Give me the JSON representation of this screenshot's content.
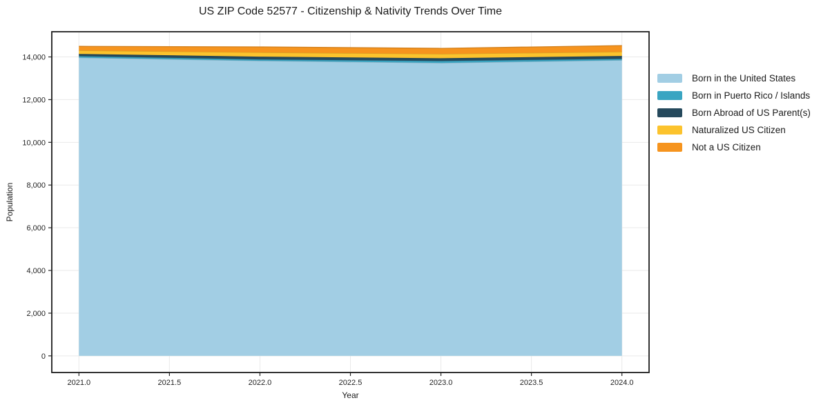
{
  "chart_data": {
    "type": "area",
    "stacked": true,
    "title": "US ZIP Code 52577 - Citizenship & Nativity Trends Over Time",
    "xlabel": "Year",
    "ylabel": "Population",
    "x": [
      2021,
      2022,
      2023,
      2024
    ],
    "series": [
      {
        "name": "Born in the United States",
        "color": "#a2cee4",
        "values": [
          13970,
          13820,
          13720,
          13850
        ]
      },
      {
        "name": "Born in Puerto Rico / Islands",
        "color": "#3aa5c2",
        "values": [
          65,
          65,
          90,
          65
        ]
      },
      {
        "name": "Born Abroad of US Parent(s)",
        "color": "#25495c",
        "values": [
          105,
          130,
          130,
          130
        ]
      },
      {
        "name": "Naturalized US Citizen",
        "color": "#fcc32d",
        "values": [
          160,
          195,
          195,
          195
        ]
      },
      {
        "name": "Not a US Citizen",
        "color": "#f6941e",
        "values": [
          195,
          260,
          265,
          290
        ]
      }
    ],
    "xticks": {
      "values": [
        2021.0,
        2021.5,
        2022.0,
        2022.5,
        2023.0,
        2023.5,
        2024.0
      ],
      "labels": [
        "2021.0",
        "2021.5",
        "2022.0",
        "2022.5",
        "2023.0",
        "2023.5",
        "2024.0"
      ]
    },
    "yticks": {
      "values": [
        0,
        2000,
        4000,
        6000,
        8000,
        10000,
        12000,
        14000
      ],
      "labels": [
        "0",
        "2,000",
        "4,000",
        "6,000",
        "8,000",
        "10,000",
        "12,000",
        "14,000"
      ]
    },
    "xlim": [
      2020.85,
      2024.15
    ],
    "ylim": [
      -780,
      15180
    ],
    "grid": true,
    "legend_position": "upper-right-outside",
    "colors": {
      "spine": "#1c1c1c",
      "grid": "#e9e9e9",
      "tick": "#222222",
      "text": "#1a1a1a",
      "plot_bg": "#ffffff"
    }
  }
}
